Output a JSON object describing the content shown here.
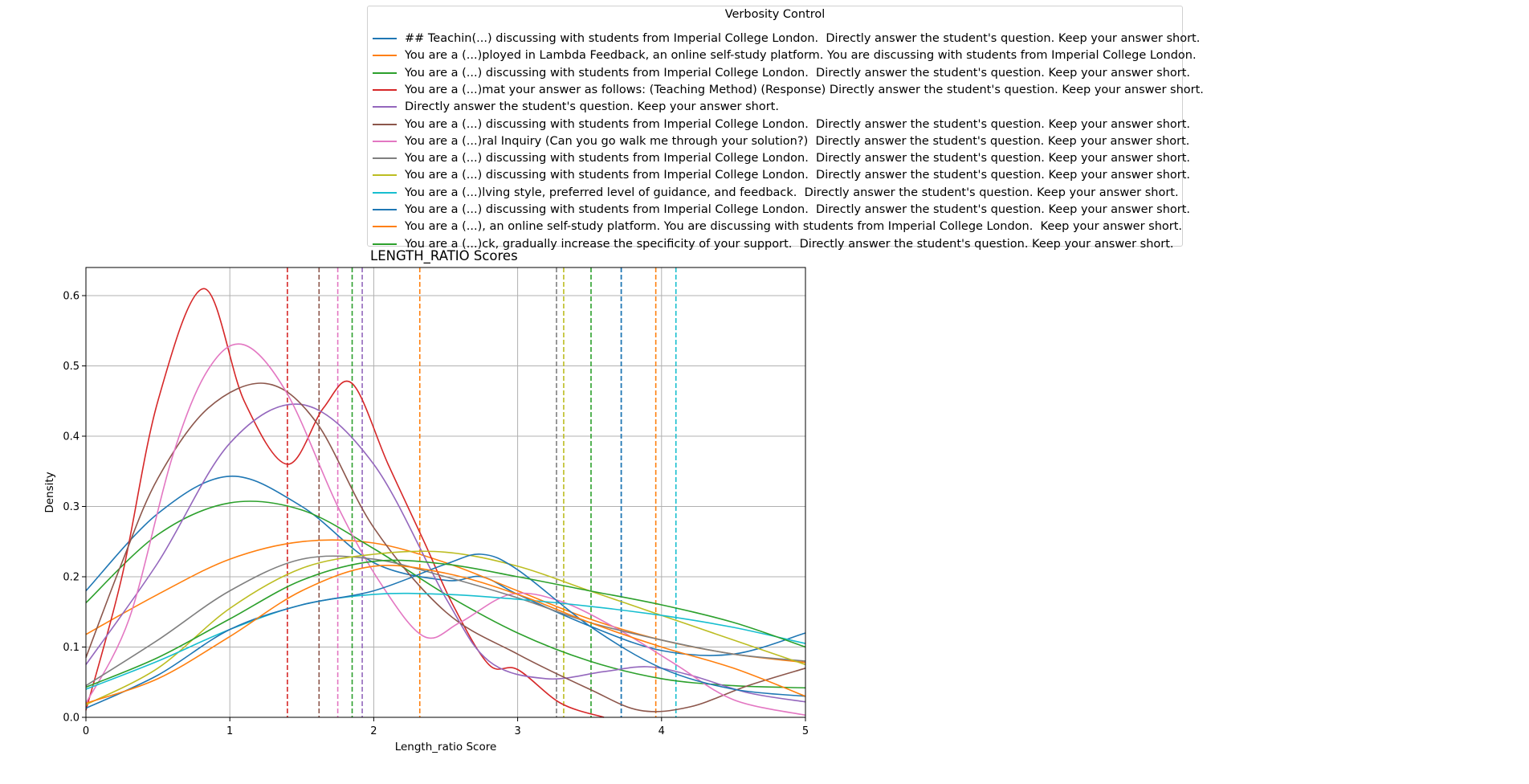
{
  "chart_data": {
    "type": "line",
    "title": "LENGTH_RATIO Scores",
    "xlabel": "Length_ratio Score",
    "ylabel": "Density",
    "xlim": [
      0,
      5
    ],
    "ylim": [
      0,
      0.64
    ],
    "xticks": [
      "0",
      "1",
      "2",
      "3",
      "4",
      "5"
    ],
    "yticks": [
      "0.0",
      "0.1",
      "0.2",
      "0.3",
      "0.4",
      "0.5",
      "0.6"
    ],
    "grid": true,
    "legend": {
      "title": "Verbosity Control",
      "placement": "top-center above plot"
    },
    "series": [
      {
        "name": "## Teachin(...) discussing with students from Imperial College London.  Directly answer the student's question. Keep your answer short.",
        "color": "#1f77b4",
        "mean": 3.72,
        "x": [
          0,
          0.5,
          1.0,
          1.5,
          2.0,
          2.5,
          2.75,
          3.0,
          3.5,
          4.0,
          4.5,
          5.0
        ],
        "y": [
          0.18,
          0.29,
          0.343,
          0.3,
          0.22,
          0.195,
          0.2,
          0.175,
          0.13,
          0.095,
          0.09,
          0.12
        ]
      },
      {
        "name": "You are a (...)ployed in Lambda Feedback, an online self-study platform. You are discussing with students from Imperial College London.",
        "color": "#ff7f0e",
        "mean": 3.96,
        "x": [
          0,
          0.5,
          1.0,
          1.5,
          2.0,
          2.5,
          3.0,
          3.5,
          4.0,
          4.5,
          5.0
        ],
        "y": [
          0.118,
          0.175,
          0.225,
          0.25,
          0.248,
          0.22,
          0.18,
          0.14,
          0.11,
          0.09,
          0.078
        ]
      },
      {
        "name": "You are a (...) discussing with students from Imperial College London.  Directly answer the student's question. Keep your answer short.",
        "color": "#2ca02c",
        "mean": 1.85,
        "x": [
          0,
          0.5,
          1.0,
          1.5,
          2.0,
          2.5,
          3.0,
          3.5,
          4.0,
          4.5,
          5.0
        ],
        "y": [
          0.163,
          0.26,
          0.305,
          0.295,
          0.24,
          0.175,
          0.12,
          0.08,
          0.055,
          0.045,
          0.042
        ]
      },
      {
        "name": "You are a (...)mat your answer as follows: (Teaching Method) (Response) Directly answer the student's question. Keep your answer short.",
        "color": "#d62728",
        "mean": 1.4,
        "x": [
          0,
          0.25,
          0.5,
          0.82,
          1.1,
          1.4,
          1.65,
          1.85,
          2.1,
          2.35,
          2.55,
          2.8,
          3.0,
          3.3,
          3.6
        ],
        "y": [
          0.01,
          0.2,
          0.45,
          0.61,
          0.45,
          0.36,
          0.44,
          0.475,
          0.36,
          0.25,
          0.16,
          0.075,
          0.068,
          0.02,
          0.0
        ]
      },
      {
        "name": "Directly answer the student's question. Keep your answer short.",
        "color": "#9467bd",
        "mean": 1.92,
        "x": [
          0,
          0.5,
          1.0,
          1.5,
          2.0,
          2.5,
          2.8,
          3.2,
          3.6,
          3.9,
          4.2,
          4.6,
          5.0
        ],
        "y": [
          0.075,
          0.22,
          0.39,
          0.445,
          0.36,
          0.17,
          0.08,
          0.055,
          0.065,
          0.072,
          0.06,
          0.035,
          0.022
        ]
      },
      {
        "name": "You are a (...) discussing with students from Imperial College London.  Directly answer the student's question. Keep your answer short.",
        "color": "#8c564b",
        "mean": 1.62,
        "x": [
          0,
          0.25,
          0.5,
          0.85,
          1.25,
          1.6,
          2.0,
          2.5,
          3.0,
          3.5,
          3.85,
          4.2,
          4.6,
          5.0
        ],
        "y": [
          0.085,
          0.22,
          0.34,
          0.44,
          0.475,
          0.42,
          0.27,
          0.15,
          0.09,
          0.04,
          0.01,
          0.015,
          0.045,
          0.07
        ]
      },
      {
        "name": "You are a (...)ral Inquiry (Can you go walk me through your solution?)  Directly answer the student's question. Keep your answer short.",
        "color": "#e377c2",
        "mean": 1.75,
        "x": [
          0,
          0.3,
          0.6,
          0.85,
          1.1,
          1.4,
          1.75,
          2.05,
          2.35,
          2.6,
          2.95,
          3.3,
          3.7,
          4.1,
          4.5,
          5.0
        ],
        "y": [
          0.02,
          0.14,
          0.37,
          0.495,
          0.53,
          0.46,
          0.3,
          0.19,
          0.115,
          0.135,
          0.175,
          0.165,
          0.125,
          0.075,
          0.025,
          0.003
        ]
      },
      {
        "name": "You are a (...) discussing with students from Imperial College London.  Directly answer the student's question. Keep your answer short.",
        "color": "#7f7f7f",
        "mean": 3.27,
        "x": [
          0,
          0.5,
          1.0,
          1.5,
          2.0,
          2.5,
          3.0,
          3.5,
          4.0,
          4.5,
          5.0
        ],
        "y": [
          0.045,
          0.11,
          0.18,
          0.225,
          0.225,
          0.2,
          0.17,
          0.135,
          0.11,
          0.09,
          0.08
        ]
      },
      {
        "name": "You are a (...) discussing with students from Imperial College London.  Directly answer the student's question. Keep your answer short.",
        "color": "#bcbd22",
        "mean": 3.32,
        "x": [
          0,
          0.5,
          1.0,
          1.5,
          2.0,
          2.5,
          3.0,
          3.5,
          4.0,
          4.5,
          5.0
        ],
        "y": [
          0.018,
          0.07,
          0.155,
          0.212,
          0.232,
          0.235,
          0.215,
          0.18,
          0.145,
          0.11,
          0.075
        ]
      },
      {
        "name": "You are a (...)lving style, preferred level of guidance, and feedback.  Directly answer the student's question. Keep your answer short.",
        "color": "#17becf",
        "mean": 4.1,
        "x": [
          0,
          0.5,
          1.0,
          1.5,
          2.0,
          2.5,
          3.0,
          3.5,
          4.0,
          4.5,
          5.0
        ],
        "y": [
          0.04,
          0.08,
          0.125,
          0.16,
          0.175,
          0.175,
          0.168,
          0.158,
          0.145,
          0.128,
          0.105
        ]
      },
      {
        "name": "You are a (...) discussing with students from Imperial College London.  Directly answer the student's question. Keep your answer short.",
        "color": "#1f77b4",
        "mean": 3.72,
        "x": [
          0,
          0.5,
          1.0,
          1.5,
          2.0,
          2.5,
          2.75,
          3.0,
          3.5,
          4.0,
          4.5,
          5.0
        ],
        "y": [
          0.013,
          0.06,
          0.125,
          0.16,
          0.18,
          0.218,
          0.232,
          0.21,
          0.13,
          0.07,
          0.04,
          0.03
        ]
      },
      {
        "name": "You are a (...), an online self-study platform. You are discussing with students from Imperial College London.  Keep your answer short.",
        "color": "#ff7f0e",
        "mean": 2.32,
        "x": [
          0,
          0.5,
          1.0,
          1.5,
          2.0,
          2.5,
          3.0,
          3.5,
          4.0,
          4.5,
          5.0
        ],
        "y": [
          0.02,
          0.055,
          0.115,
          0.18,
          0.215,
          0.205,
          0.175,
          0.135,
          0.1,
          0.07,
          0.03
        ]
      },
      {
        "name": "You are a (...)ck, gradually increase the specificity of your support.  Directly answer the student's question. Keep your answer short.",
        "color": "#2ca02c",
        "mean": 3.51,
        "x": [
          0,
          0.5,
          1.0,
          1.5,
          2.0,
          2.5,
          3.0,
          3.5,
          4.0,
          4.5,
          5.0
        ],
        "y": [
          0.043,
          0.085,
          0.14,
          0.195,
          0.222,
          0.218,
          0.2,
          0.18,
          0.16,
          0.135,
          0.1
        ]
      }
    ]
  }
}
